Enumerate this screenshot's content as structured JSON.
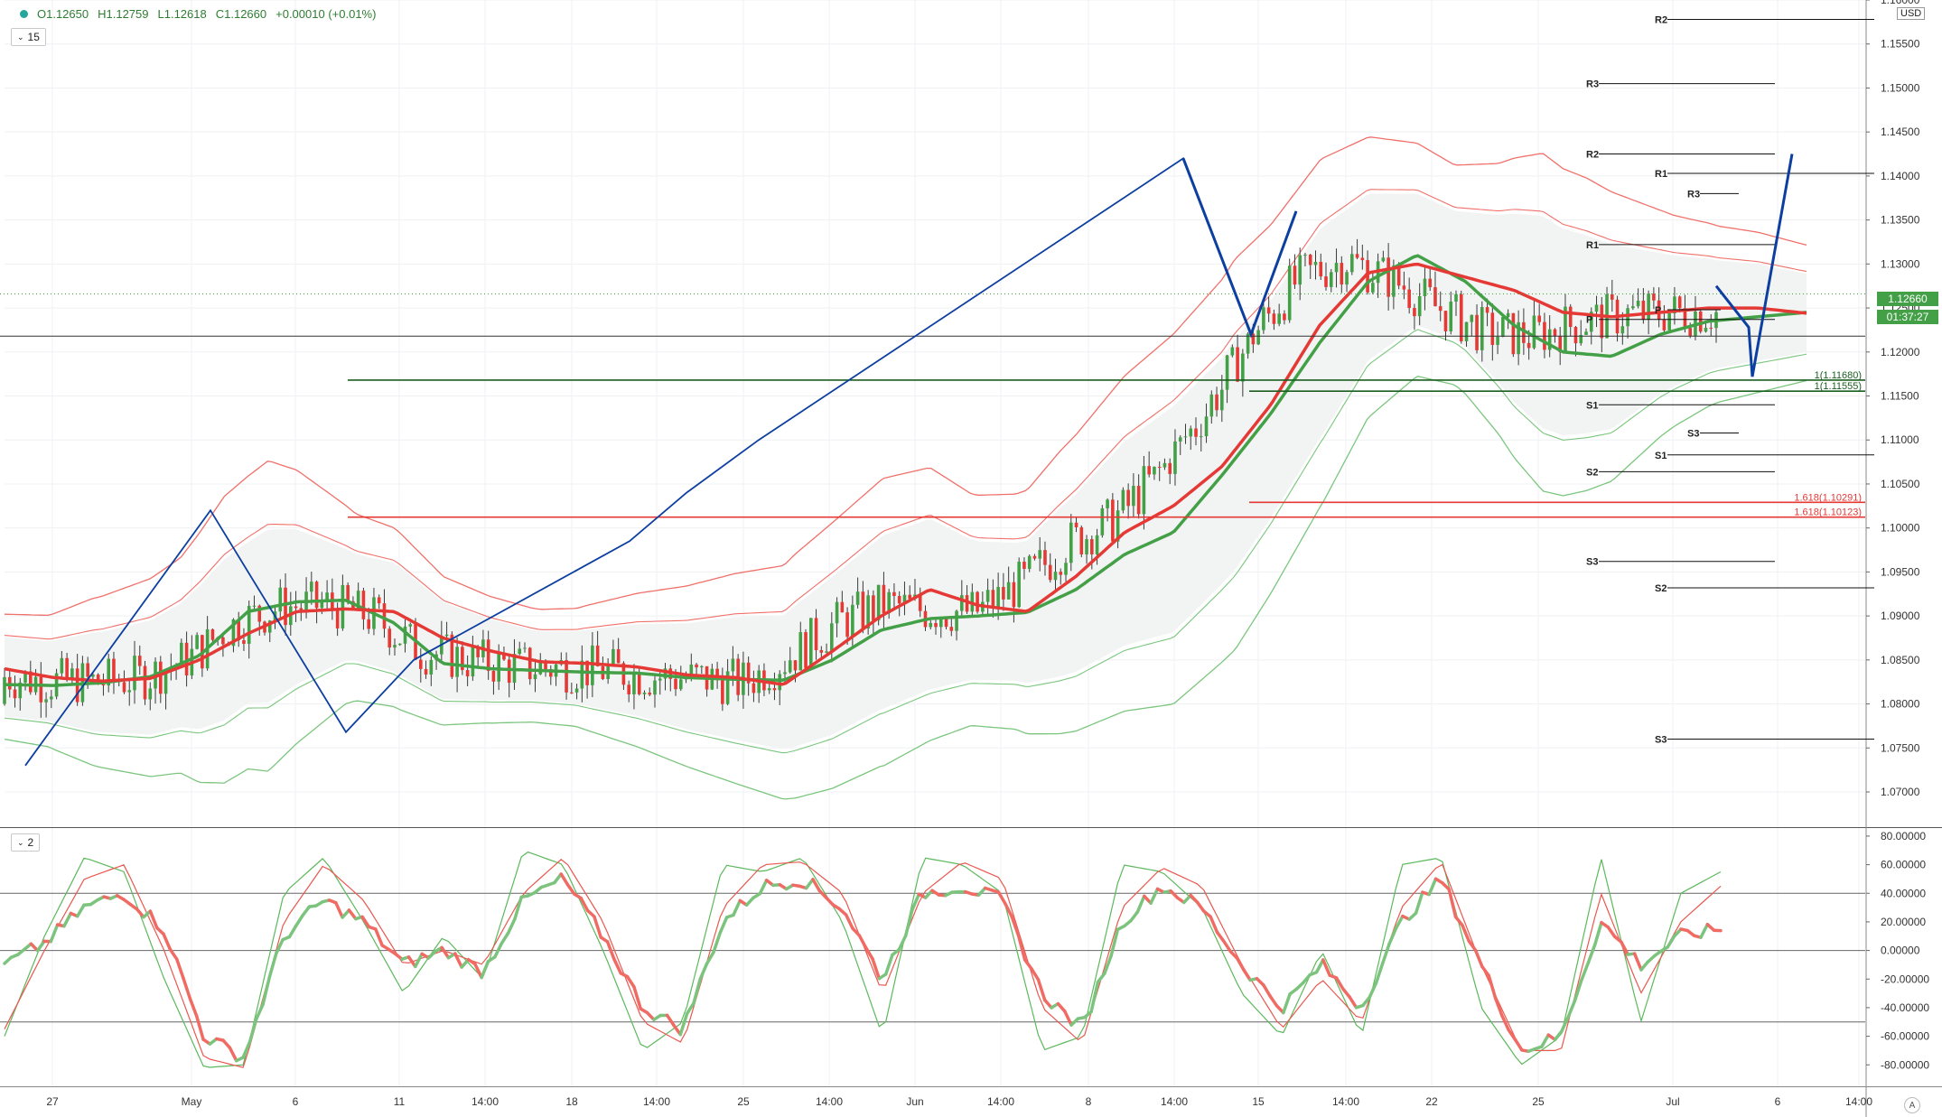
{
  "legend": {
    "open": "O1.12650",
    "high": "H1.12759",
    "low": "L1.12618",
    "close": "C1.12660",
    "change": "+0.00010 (+0.01%)"
  },
  "main_pane_label": "15",
  "osc_pane_label": "2",
  "currency": "USD",
  "last_price": "1.12660",
  "countdown": "01:37:27",
  "auto_label": "A",
  "colors": {
    "up": "#43a047",
    "down": "#e53935",
    "pattern": "#0d3fa0",
    "band_red": "#f0706a",
    "band_green": "#7bc67e"
  },
  "chart_data": [
    {
      "type": "line",
      "title": "",
      "y_axis_ticks": [
        "1.16000",
        "1.15500",
        "1.15000",
        "1.14500",
        "1.14000",
        "1.13500",
        "1.13000",
        "1.12500",
        "1.12000",
        "1.11500",
        "1.11000",
        "1.10500",
        "1.10000",
        "1.09500",
        "1.09000",
        "1.08500",
        "1.08000",
        "1.07500",
        "1.07000"
      ],
      "ylim": [
        1.066,
        1.16
      ],
      "x_axis_ticks": [
        "27",
        "May",
        "6",
        "11",
        "14:00",
        "18",
        "14:00",
        "25",
        "14:00",
        "Jun",
        "14:00",
        "8",
        "14:00",
        "15",
        "14:00",
        "22",
        "25",
        "Jul",
        "6",
        "14:00"
      ],
      "series": [
        {
          "name": "",
          "role": "slow moving average (green)",
          "values": [
            1.0822,
            1.0821,
            1.0824,
            1.0831,
            1.0855,
            1.0905,
            1.0916,
            1.0918,
            1.0892,
            1.0846,
            1.084,
            1.0838,
            1.0836,
            1.0835,
            1.083,
            1.0828,
            1.0827,
            1.085,
            1.0884,
            1.0897,
            1.09,
            1.0904,
            1.093,
            1.097,
            1.0995,
            1.106,
            1.113,
            1.121,
            1.128,
            1.131,
            1.128,
            1.123,
            1.12,
            1.1195,
            1.122,
            1.1235,
            1.124,
            1.1245
          ]
        },
        {
          "name": "",
          "role": "fast moving average (red)",
          "values": [
            1.084,
            1.083,
            1.0826,
            1.0829,
            1.085,
            1.088,
            1.0905,
            1.0908,
            1.0905,
            1.0875,
            1.086,
            1.0848,
            1.0846,
            1.0842,
            1.0833,
            1.083,
            1.0822,
            1.086,
            1.09,
            1.093,
            1.0912,
            1.0905,
            1.0945,
            1.0995,
            1.1025,
            1.107,
            1.114,
            1.123,
            1.129,
            1.13,
            1.1285,
            1.127,
            1.1245,
            1.124,
            1.1245,
            1.125,
            1.125,
            1.1244
          ]
        }
      ],
      "candles_summary": "15-minute candlesticks, price rising from about 1.0740 at 27 Apr to about 1.1420 on 10 Jun, then ranging between 1.1170 and 1.1350",
      "pattern_zigzag": [
        [
          0,
          1.073
        ],
        [
          5,
          1.102
        ],
        [
          9,
          1.0768
        ],
        [
          12,
          1.085
        ],
        [
          17,
          1.0985
        ],
        [
          24,
          1.104
        ],
        [
          25,
          1.11
        ],
        [
          31,
          1.142
        ],
        [
          35,
          1.122
        ],
        [
          38,
          1.136
        ]
      ],
      "pattern_projection": [
        [
          54,
          1.1275
        ],
        [
          55,
          1.1228
        ],
        [
          57,
          1.1172
        ],
        [
          59,
          1.1425
        ]
      ],
      "horizontal_lines": [
        {
          "label": "",
          "value": 1.1218,
          "color": "#333"
        },
        {
          "label": "1(1.11680)",
          "value": 1.1168,
          "color": "#1b5e20"
        },
        {
          "label": "1(1.11555)",
          "value": 1.11555,
          "color": "#1b5e20"
        },
        {
          "label": "1.618(1.10291)",
          "value": 1.10291,
          "color": "#e53935"
        },
        {
          "label": "1.618(1.10123)",
          "value": 1.10123,
          "color": "#e53935"
        }
      ],
      "pivot_levels": [
        {
          "label": "R2",
          "value": 1.1578
        },
        {
          "label": "R3",
          "value": 1.1505
        },
        {
          "label": "R2",
          "value": 1.1425
        },
        {
          "label": "R1",
          "value": 1.1403
        },
        {
          "label": "R3",
          "value": 1.138
        },
        {
          "label": "R1",
          "value": 1.1322
        },
        {
          "label": "P",
          "value": 1.1237
        },
        {
          "label": "P",
          "value": 1.1248
        },
        {
          "label": "S1",
          "value": 1.114
        },
        {
          "label": "S3",
          "value": 1.1108
        },
        {
          "label": "S1",
          "value": 1.1083
        },
        {
          "label": "S2",
          "value": 1.1064
        },
        {
          "label": "S3",
          "value": 1.0962
        },
        {
          "label": "S2",
          "value": 1.0932
        },
        {
          "label": "S3",
          "value": 1.076
        }
      ]
    },
    {
      "type": "line",
      "title": "",
      "y_axis_ticks": [
        "80.00000",
        "60.00000",
        "40.00000",
        "20.00000",
        "0.00000",
        "-20.00000",
        "-40.00000",
        "-60.00000",
        "-80.00000"
      ],
      "ylim": [
        -95,
        85
      ],
      "reference_lines": [
        40,
        0,
        -50
      ],
      "series": [
        {
          "name": "",
          "role": "fast stochastic line (green)",
          "values": [
            -60,
            10,
            65,
            55,
            -20,
            -82,
            -80,
            40,
            65,
            20,
            -30,
            10,
            -20,
            70,
            60,
            0,
            -70,
            -50,
            60,
            55,
            65,
            20,
            -60,
            65,
            60,
            40,
            -70,
            -60,
            60,
            55,
            30,
            -30,
            -60,
            0,
            -60,
            60,
            65,
            -40,
            -80,
            -60,
            65,
            -50,
            40,
            55
          ]
        },
        {
          "name": "",
          "role": "slow stochastic line (red)",
          "values": [
            -55,
            0,
            50,
            60,
            0,
            -75,
            -82,
            20,
            60,
            35,
            -10,
            0,
            -10,
            40,
            65,
            20,
            -50,
            -65,
            30,
            60,
            62,
            40,
            -30,
            40,
            62,
            50,
            -40,
            -65,
            30,
            58,
            45,
            -10,
            -55,
            -20,
            -50,
            30,
            62,
            -10,
            -70,
            -70,
            40,
            -30,
            20,
            45
          ]
        },
        {
          "name": "",
          "role": "thick signal line",
          "values": [
            -10,
            5,
            30,
            40,
            15,
            -60,
            -75,
            10,
            35,
            20,
            -10,
            0,
            -15,
            35,
            50,
            10,
            -40,
            -55,
            20,
            45,
            50,
            30,
            -20,
            40,
            45,
            35,
            -30,
            -55,
            20,
            45,
            30,
            -10,
            -40,
            -10,
            -40,
            20,
            50,
            -10,
            -70,
            -60,
            20,
            -10,
            10,
            15
          ]
        }
      ]
    }
  ]
}
